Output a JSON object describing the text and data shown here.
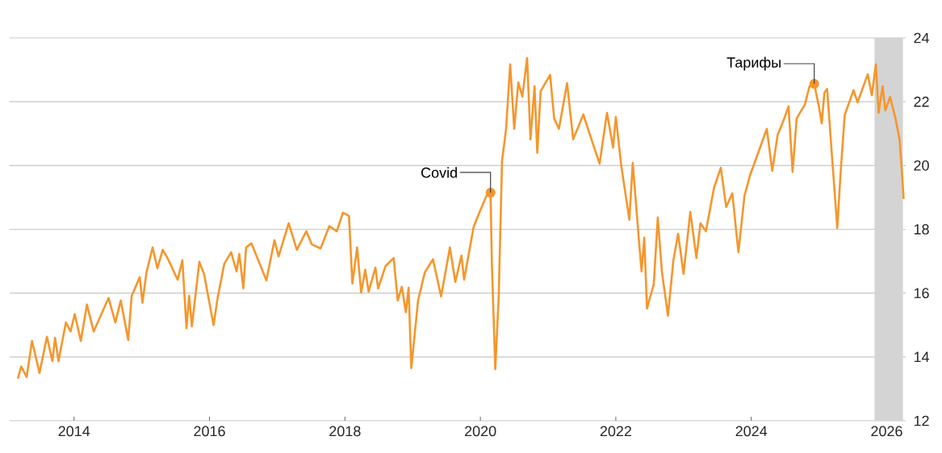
{
  "chart_data": {
    "type": "line",
    "x": [
      2013.17,
      2013.22,
      2013.3,
      2013.38,
      2013.49,
      2013.6,
      2013.68,
      2013.72,
      2013.77,
      2013.88,
      2013.95,
      2014.01,
      2014.1,
      2014.19,
      2014.29,
      2014.51,
      2014.61,
      2014.69,
      2014.8,
      2014.85,
      2014.97,
      2015.01,
      2015.07,
      2015.16,
      2015.23,
      2015.31,
      2015.38,
      2015.53,
      2015.6,
      2015.66,
      2015.7,
      2015.74,
      2015.85,
      2015.92,
      2016.06,
      2016.12,
      2016.22,
      2016.32,
      2016.4,
      2016.44,
      2016.5,
      2016.54,
      2016.62,
      2016.84,
      2016.96,
      2017.02,
      2017.17,
      2017.29,
      2017.43,
      2017.51,
      2017.64,
      2017.77,
      2017.88,
      2017.97,
      2018.06,
      2018.11,
      2018.18,
      2018.24,
      2018.3,
      2018.35,
      2018.45,
      2018.49,
      2018.6,
      2018.72,
      2018.78,
      2018.84,
      2018.9,
      2018.94,
      2018.98,
      2019.08,
      2019.18,
      2019.3,
      2019.42,
      2019.55,
      2019.63,
      2019.72,
      2019.76,
      2019.9,
      2019.98,
      2020.09,
      2020.15,
      2020.17,
      2020.22,
      2020.27,
      2020.32,
      2020.38,
      2020.44,
      2020.5,
      2020.56,
      2020.62,
      2020.69,
      2020.74,
      2020.8,
      2020.84,
      2020.89,
      2021.03,
      2021.09,
      2021.16,
      2021.28,
      2021.37,
      2021.52,
      2021.64,
      2021.76,
      2021.87,
      2021.96,
      2022.0,
      2022.08,
      2022.2,
      2022.25,
      2022.34,
      2022.38,
      2022.42,
      2022.46,
      2022.56,
      2022.62,
      2022.68,
      2022.77,
      2022.85,
      2022.92,
      2023.0,
      2023.1,
      2023.19,
      2023.25,
      2023.33,
      2023.45,
      2023.55,
      2023.63,
      2023.72,
      2023.81,
      2023.9,
      2023.98,
      2024.07,
      2024.23,
      2024.31,
      2024.39,
      2024.46,
      2024.55,
      2024.61,
      2024.67,
      2024.74,
      2024.79,
      2024.86,
      2024.93,
      2025.0,
      2025.04,
      2025.08,
      2025.12,
      2025.2,
      2025.27,
      2025.32,
      2025.38,
      2025.51,
      2025.57,
      2025.72,
      2025.78,
      2025.84,
      2025.88,
      2025.94,
      2025.98,
      2026.05,
      2026.13,
      2026.19,
      2026.23,
      2026.25
    ],
    "series": [
      {
        "color": "#f5962c",
        "values": [
          13.32,
          13.7,
          13.37,
          14.5,
          13.5,
          14.63,
          13.87,
          14.6,
          13.87,
          15.08,
          14.8,
          15.34,
          14.5,
          15.64,
          14.8,
          15.85,
          15.08,
          15.77,
          14.53,
          15.9,
          16.5,
          15.7,
          16.65,
          17.43,
          16.78,
          17.36,
          17.1,
          16.42,
          17.03,
          14.9,
          15.92,
          14.96,
          16.98,
          16.6,
          15.0,
          15.85,
          16.93,
          17.28,
          16.68,
          17.23,
          16.15,
          17.43,
          17.56,
          16.4,
          17.66,
          17.15,
          18.19,
          17.36,
          17.94,
          17.53,
          17.4,
          18.1,
          17.94,
          18.52,
          18.42,
          16.3,
          17.43,
          16.02,
          16.73,
          16.05,
          16.8,
          16.15,
          16.85,
          17.1,
          15.77,
          16.2,
          15.4,
          16.17,
          13.65,
          15.77,
          16.65,
          17.06,
          15.9,
          17.43,
          16.35,
          17.18,
          16.42,
          18.07,
          18.5,
          19.05,
          19.15,
          16.93,
          13.62,
          15.84,
          20.14,
          21.15,
          23.17,
          21.15,
          22.6,
          22.16,
          23.37,
          20.82,
          22.48,
          20.4,
          22.33,
          22.84,
          21.47,
          21.15,
          22.58,
          20.82,
          21.6,
          20.82,
          20.06,
          21.65,
          20.56,
          21.52,
          20.0,
          18.3,
          20.08,
          17.69,
          16.68,
          17.74,
          15.52,
          16.27,
          18.37,
          16.68,
          15.29,
          17.03,
          17.86,
          16.6,
          18.55,
          17.1,
          18.19,
          17.94,
          19.3,
          19.93,
          18.7,
          19.13,
          17.28,
          19.05,
          19.68,
          20.21,
          21.15,
          19.83,
          20.97,
          21.32,
          21.85,
          19.8,
          21.47,
          21.73,
          21.9,
          22.48,
          22.56,
          21.83,
          21.32,
          22.28,
          22.4,
          20.06,
          18.04,
          19.8,
          21.58,
          22.36,
          21.98,
          22.86,
          22.2,
          23.17,
          21.65,
          22.48,
          21.73,
          22.15,
          21.47,
          20.82,
          19.63,
          18.95
        ]
      }
    ],
    "xlim": [
      2013.05,
      2026.28
    ],
    "ylim": [
      12,
      24
    ],
    "xticks": [
      2014,
      2016,
      2018,
      2020,
      2022,
      2024,
      2026
    ],
    "yticks": [
      12,
      14,
      16,
      18,
      20,
      22,
      24
    ],
    "grid": "y",
    "bands": [
      {
        "axis": "x",
        "from": 2025.82,
        "to": 2026.24,
        "color": "#d4d4d4"
      }
    ],
    "annotations": [
      {
        "text": "Covid",
        "x": 2020.15,
        "y": 19.15
      },
      {
        "text": "Тарифы",
        "x": 2024.93,
        "y": 22.56
      }
    ]
  }
}
